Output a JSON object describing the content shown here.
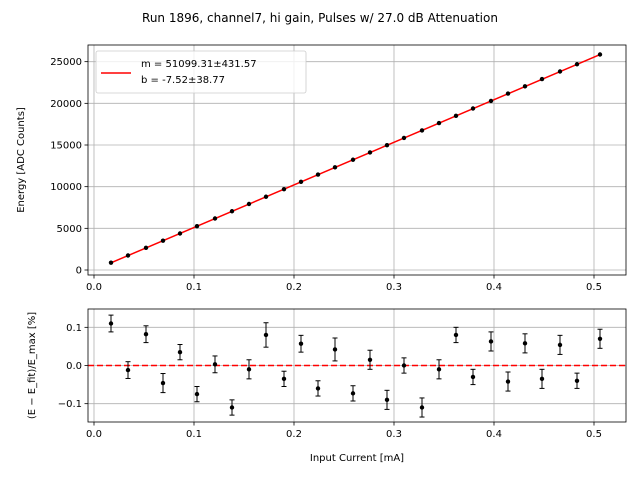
{
  "figure": {
    "title": "Run 1896, channel7, hi gain, Pulses w/ 27.0 dB Attenuation"
  },
  "chart_data": [
    {
      "type": "scatter",
      "panel": "top",
      "ylabel": "Energy [ADC Counts]",
      "xlim": [
        -0.006,
        0.532
      ],
      "ylim": [
        -600,
        27000
      ],
      "xticks": [
        0.0,
        0.1,
        0.2,
        0.3,
        0.4,
        0.5
      ],
      "xtick_labels": [
        "0.0",
        "0.1",
        "0.2",
        "0.3",
        "0.4",
        "0.5"
      ],
      "yticks": [
        0,
        5000,
        10000,
        15000,
        20000,
        25000
      ],
      "ytick_labels": [
        "0",
        "5000",
        "10000",
        "15000",
        "20000",
        "25000"
      ],
      "grid": true,
      "legend": {
        "placement": "top-left",
        "entries": [
          "m = 51099.31±431.57",
          "b = -7.52±38.77"
        ]
      },
      "fit_line": {
        "slope": 51099.31,
        "intercept": -7.52,
        "x_range": [
          0.017,
          0.506
        ],
        "color": "#ff0000"
      },
      "points": {
        "color": "#000000",
        "x": [
          0.017,
          0.034,
          0.052,
          0.069,
          0.086,
          0.103,
          0.121,
          0.138,
          0.155,
          0.172,
          0.19,
          0.207,
          0.224,
          0.241,
          0.259,
          0.276,
          0.293,
          0.31,
          0.328,
          0.345,
          0.362,
          0.379,
          0.397,
          0.414,
          0.431,
          0.448,
          0.466,
          0.483,
          0.506
        ],
        "y": [
          880,
          1740,
          2660,
          3520,
          4380,
          5260,
          6180,
          7050,
          7920,
          8790,
          9700,
          10580,
          11450,
          12320,
          13230,
          14110,
          14980,
          15850,
          16750,
          17630,
          18500,
          19380,
          20290,
          21170,
          22040,
          22910,
          23820,
          24690,
          25860
        ]
      }
    },
    {
      "type": "scatter",
      "panel": "bottom",
      "xlabel": "Input Current [mA]",
      "ylabel": "(E − E_fit)/E_max [%]",
      "xlim": [
        -0.006,
        0.532
      ],
      "ylim": [
        -0.148,
        0.148
      ],
      "xticks": [
        0.0,
        0.1,
        0.2,
        0.3,
        0.4,
        0.5
      ],
      "xtick_labels": [
        "0.0",
        "0.1",
        "0.2",
        "0.3",
        "0.4",
        "0.5"
      ],
      "yticks": [
        -0.1,
        0.0,
        0.1
      ],
      "ytick_labels": [
        "−0.1",
        "0.0",
        "0.1"
      ],
      "grid": true,
      "zero_line_color": "#ff0000",
      "points": {
        "color": "#000000",
        "x": [
          0.017,
          0.034,
          0.052,
          0.069,
          0.086,
          0.103,
          0.121,
          0.138,
          0.155,
          0.172,
          0.19,
          0.207,
          0.224,
          0.241,
          0.259,
          0.276,
          0.293,
          0.31,
          0.328,
          0.345,
          0.362,
          0.379,
          0.397,
          0.414,
          0.431,
          0.448,
          0.466,
          0.483,
          0.506
        ],
        "y": [
          0.11,
          -0.012,
          0.082,
          -0.046,
          0.035,
          -0.075,
          0.003,
          -0.11,
          -0.01,
          0.08,
          -0.035,
          0.057,
          -0.06,
          0.042,
          -0.073,
          0.015,
          -0.09,
          0.0,
          -0.11,
          -0.01,
          0.08,
          -0.03,
          0.063,
          -0.042,
          0.058,
          -0.035,
          0.054,
          -0.04,
          0.07
        ],
        "yerr": [
          0.022,
          0.022,
          0.022,
          0.025,
          0.02,
          0.02,
          0.022,
          0.02,
          0.025,
          0.032,
          0.02,
          0.022,
          0.02,
          0.03,
          0.02,
          0.025,
          0.025,
          0.02,
          0.025,
          0.025,
          0.02,
          0.02,
          0.025,
          0.025,
          0.025,
          0.025,
          0.025,
          0.02,
          0.025
        ]
      }
    }
  ]
}
